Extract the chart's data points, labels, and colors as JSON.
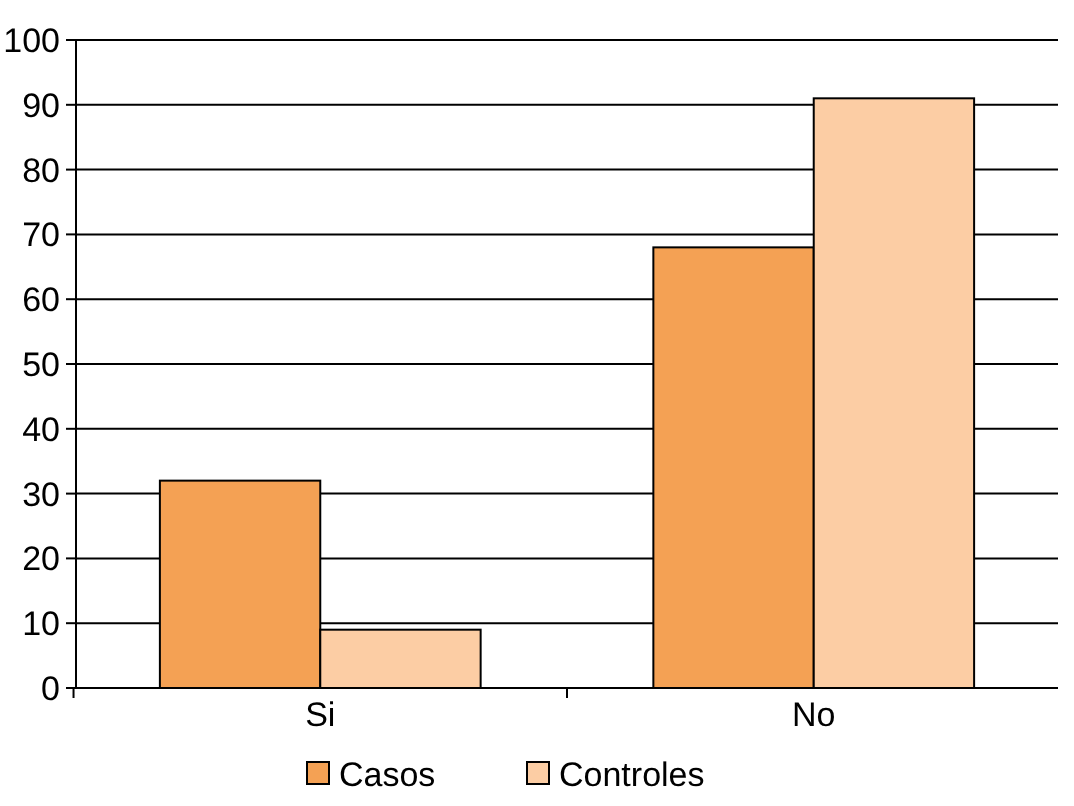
{
  "chart_data": {
    "type": "bar",
    "categories": [
      "Si",
      "No"
    ],
    "series": [
      {
        "name": "Casos",
        "color": "#f4a154",
        "values": [
          32,
          68
        ]
      },
      {
        "name": "Controles",
        "color": "#fccda4",
        "values": [
          9,
          91
        ]
      }
    ],
    "ylim": [
      0,
      100
    ],
    "yticks": [
      0,
      10,
      20,
      30,
      40,
      50,
      60,
      70,
      80,
      90,
      100
    ],
    "grid": "y",
    "legend": "bottom"
  }
}
